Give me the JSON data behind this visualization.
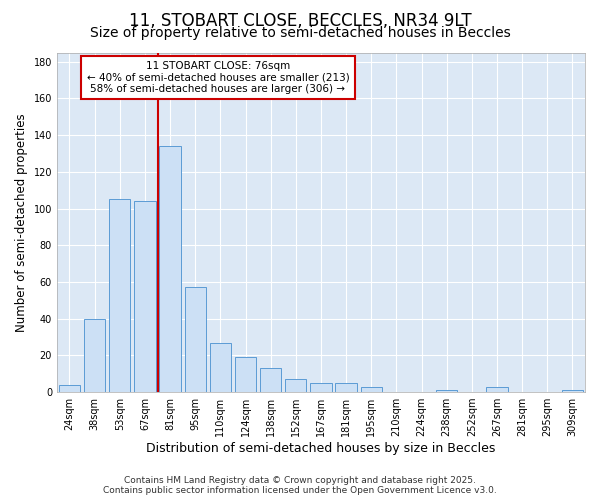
{
  "title": "11, STOBART CLOSE, BECCLES, NR34 9LT",
  "subtitle": "Size of property relative to semi-detached houses in Beccles",
  "xlabel": "Distribution of semi-detached houses by size in Beccles",
  "ylabel": "Number of semi-detached properties",
  "categories": [
    "24sqm",
    "38sqm",
    "53sqm",
    "67sqm",
    "81sqm",
    "95sqm",
    "110sqm",
    "124sqm",
    "138sqm",
    "152sqm",
    "167sqm",
    "181sqm",
    "195sqm",
    "210sqm",
    "224sqm",
    "238sqm",
    "252sqm",
    "267sqm",
    "281sqm",
    "295sqm",
    "309sqm"
  ],
  "values": [
    4,
    40,
    105,
    104,
    134,
    57,
    27,
    19,
    13,
    7,
    5,
    5,
    3,
    0,
    0,
    1,
    0,
    3,
    0,
    0,
    1
  ],
  "bar_color": "#cce0f5",
  "bar_edge_color": "#5b9bd5",
  "red_line_index": 4,
  "annotation_title": "11 STOBART CLOSE: 76sqm",
  "annotation_line1": "← 40% of semi-detached houses are smaller (213)",
  "annotation_line2": "58% of semi-detached houses are larger (306) →",
  "annotation_box_color": "#ffffff",
  "annotation_box_edge": "#cc0000",
  "red_line_color": "#cc0000",
  "ylim": [
    0,
    185
  ],
  "yticks": [
    0,
    20,
    40,
    60,
    80,
    100,
    120,
    140,
    160,
    180
  ],
  "background_color": "#dce8f5",
  "fig_background": "#ffffff",
  "footer_line1": "Contains HM Land Registry data © Crown copyright and database right 2025.",
  "footer_line2": "Contains public sector information licensed under the Open Government Licence v3.0.",
  "title_fontsize": 12,
  "subtitle_fontsize": 10,
  "tick_fontsize": 7,
  "ylabel_fontsize": 8.5,
  "xlabel_fontsize": 9,
  "annotation_fontsize": 7.5,
  "footer_fontsize": 6.5
}
